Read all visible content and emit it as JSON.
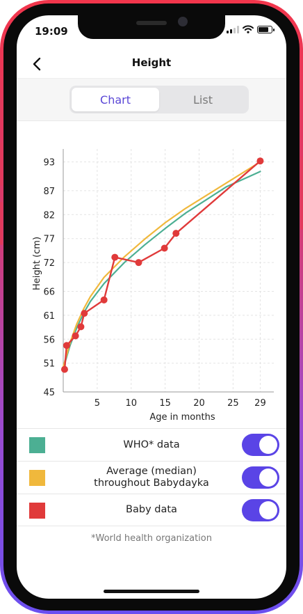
{
  "status_bar": {
    "time": "19:09",
    "signal_bars": 2,
    "battery_level": 0.8
  },
  "nav": {
    "title": "Height",
    "back_icon": "chevron-left-icon"
  },
  "tabs": [
    {
      "label": "Chart",
      "active": true
    },
    {
      "label": "List",
      "active": false
    }
  ],
  "chart_data": {
    "type": "line",
    "xlabel": "Age in months",
    "ylabel": "Height (cm)",
    "xlim": [
      0,
      31
    ],
    "ylim": [
      45,
      95.7
    ],
    "x_ticks": [
      5,
      10,
      15,
      20,
      25,
      29
    ],
    "y_ticks": [
      45,
      51,
      56,
      61,
      66,
      72,
      77,
      82,
      87,
      93
    ],
    "grid": true,
    "series": [
      {
        "name": "WHO* data",
        "color": "#4caf93",
        "x": [
          0,
          1,
          2,
          3,
          4,
          6,
          9,
          12,
          15,
          18,
          24,
          29
        ],
        "y": [
          49.9,
          54.7,
          58.4,
          61.4,
          63.9,
          67.6,
          72.0,
          75.7,
          79.1,
          82.3,
          87.8,
          91.0
        ]
      },
      {
        "name": "Average (median) throughout Babydayka",
        "color": "#f0b83c",
        "x": [
          0,
          1,
          2,
          3,
          4,
          6,
          9,
          12,
          15,
          18,
          24,
          29
        ],
        "y": [
          50.2,
          55.3,
          59.2,
          62.3,
          64.9,
          68.9,
          73.2,
          76.9,
          80.3,
          83.3,
          88.6,
          93.0
        ]
      },
      {
        "name": "Baby data",
        "color": "#e03a3a",
        "x": [
          0.2,
          0.5,
          1.8,
          2.6,
          3.1,
          6.0,
          7.6,
          11.1,
          14.9,
          16.6,
          29.0
        ],
        "y": [
          49.7,
          54.7,
          56.7,
          58.6,
          61.4,
          64.2,
          73.1,
          72.0,
          75.0,
          78.1,
          93.2
        ]
      }
    ]
  },
  "legend": [
    {
      "label": "WHO* data",
      "color": "#4caf93",
      "enabled": true
    },
    {
      "label": "Average (median) throughout Babydayka",
      "line1": "Average (median)",
      "line2": "throughout Babydayka",
      "color": "#f0b83c",
      "enabled": true
    },
    {
      "label": "Baby data",
      "color": "#e03a3a",
      "enabled": true
    }
  ],
  "footnote": "*World health organization",
  "colors": {
    "accent": "#5a47d6",
    "toggle_on": "#5a44e6"
  }
}
